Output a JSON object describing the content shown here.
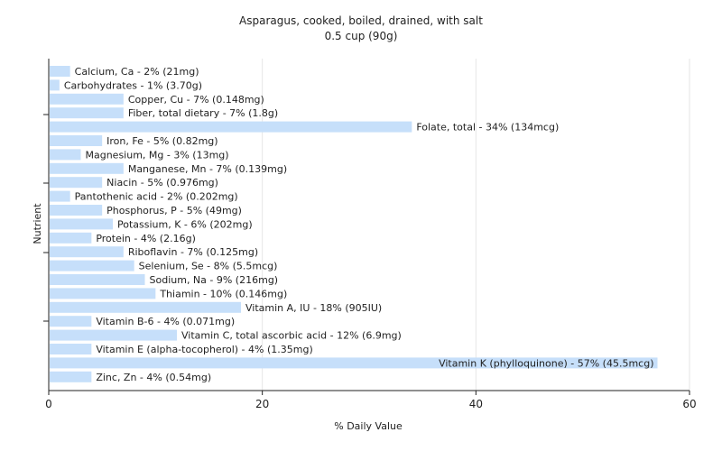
{
  "chart_data": {
    "type": "bar",
    "orientation": "horizontal",
    "title": "Asparagus, cooked, boiled, drained, with salt",
    "subtitle": "0.5 cup (90g)",
    "xlabel": "% Daily Value",
    "ylabel": "Nutrient",
    "xlim": [
      0,
      60
    ],
    "xticks": [
      0,
      20,
      40,
      60
    ],
    "grid": true,
    "bar_color": "#c6dffa",
    "categories": [
      "Calcium, Ca",
      "Carbohydrates",
      "Copper, Cu",
      "Fiber, total dietary",
      "Folate, total",
      "Iron, Fe",
      "Magnesium, Mg",
      "Manganese, Mn",
      "Niacin",
      "Pantothenic acid",
      "Phosphorus, P",
      "Potassium, K",
      "Protein",
      "Riboflavin",
      "Selenium, Se",
      "Sodium, Na",
      "Thiamin",
      "Vitamin A, IU",
      "Vitamin B-6",
      "Vitamin C, total ascorbic acid",
      "Vitamin E (alpha-tocopherol)",
      "Vitamin K (phylloquinone)",
      "Zinc, Zn"
    ],
    "values": [
      2,
      1,
      7,
      7,
      34,
      5,
      3,
      7,
      5,
      2,
      5,
      6,
      4,
      7,
      8,
      9,
      10,
      18,
      4,
      12,
      4,
      57,
      4
    ],
    "labels": [
      "Calcium, Ca - 2% (21mg)",
      "Carbohydrates - 1% (3.70g)",
      "Copper, Cu - 7% (0.148mg)",
      "Fiber, total dietary - 7% (1.8g)",
      "Folate, total - 34% (134mcg)",
      "Iron, Fe - 5% (0.82mg)",
      "Magnesium, Mg - 3% (13mg)",
      "Manganese, Mn - 7% (0.139mg)",
      "Niacin - 5% (0.976mg)",
      "Pantothenic acid - 2% (0.202mg)",
      "Phosphorus, P - 5% (49mg)",
      "Potassium, K - 6% (202mg)",
      "Protein - 4% (2.16g)",
      "Riboflavin - 7% (0.125mg)",
      "Selenium, Se - 8% (5.5mcg)",
      "Sodium, Na - 9% (216mg)",
      "Thiamin - 10% (0.146mg)",
      "Vitamin A, IU - 18% (905IU)",
      "Vitamin B-6 - 4% (0.071mg)",
      "Vitamin C, total ascorbic acid - 12% (6.9mg)",
      "Vitamin E (alpha-tocopherol) - 4% (1.35mg)",
      "Vitamin K (phylloquinone) - 57% (45.5mcg)",
      "Zinc, Zn - 4% (0.54mg)"
    ]
  }
}
